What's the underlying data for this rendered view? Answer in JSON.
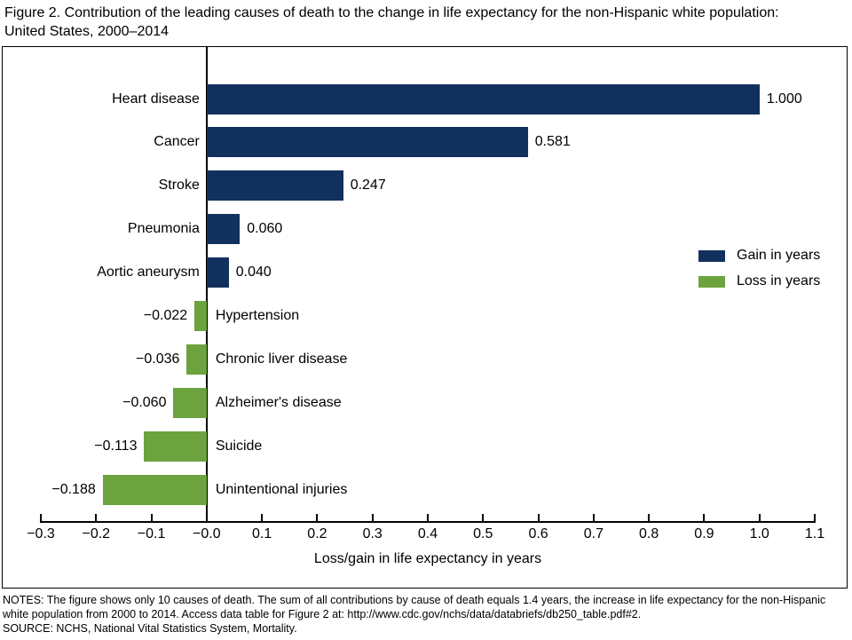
{
  "title": "Figure 2. Contribution of the leading causes of death to the change in life expectancy for the non-Hispanic white population: United States, 2000–2014",
  "notes": "NOTES: The figure shows only 10 causes of death. The sum of all contributions by cause of death equals 1.4 years, the increase in life expectancy for the non-Hispanic white population from 2000 to 2014. Access data table for Figure 2 at: http://www.cdc.gov/nchs/data/databriefs/db250_table.pdf#2.",
  "source": "SOURCE: NCHS, National Vital Statistics System, Mortality.",
  "colors": {
    "gain": "#12305e",
    "loss": "#6ca33e",
    "axis": "#000000"
  },
  "chart_data": {
    "type": "bar",
    "orientation": "horizontal",
    "title": "",
    "xlabel": "Loss/gain in life expectancy in years",
    "ylabel": "",
    "xlim": [
      -0.3,
      1.1
    ],
    "grid": false,
    "categories": [
      "Heart disease",
      "Cancer",
      "Stroke",
      "Pneumonia",
      "Aortic aneurysm",
      "Hypertension",
      "Chronic liver disease",
      "Alzheimer's disease",
      "Suicide",
      "Unintentional injuries"
    ],
    "values": [
      1.0,
      0.581,
      0.247,
      0.06,
      0.04,
      -0.022,
      -0.036,
      -0.06,
      -0.113,
      -0.188
    ],
    "value_labels": [
      "1.000",
      "0.581",
      "0.247",
      "0.060",
      "0.040",
      "−0.022",
      "−0.036",
      "−0.060",
      "−0.113",
      "−0.188"
    ],
    "xtick_values": [
      -0.3,
      -0.2,
      -0.1,
      0.0,
      0.1,
      0.2,
      0.3,
      0.4,
      0.5,
      0.6,
      0.7,
      0.8,
      0.9,
      1.0,
      1.1
    ],
    "xtick_labels": [
      "−0.3",
      "−0.2",
      "−0.1",
      "−0.0",
      "0.1",
      "0.2",
      "0.3",
      "0.4",
      "0.5",
      "0.6",
      "0.7",
      "0.8",
      "0.9",
      "1.0",
      "1.1"
    ],
    "legend_position": "right-middle",
    "legend": [
      {
        "label": "Gain in years",
        "color_key": "gain"
      },
      {
        "label": "Loss in years",
        "color_key": "loss"
      }
    ]
  }
}
